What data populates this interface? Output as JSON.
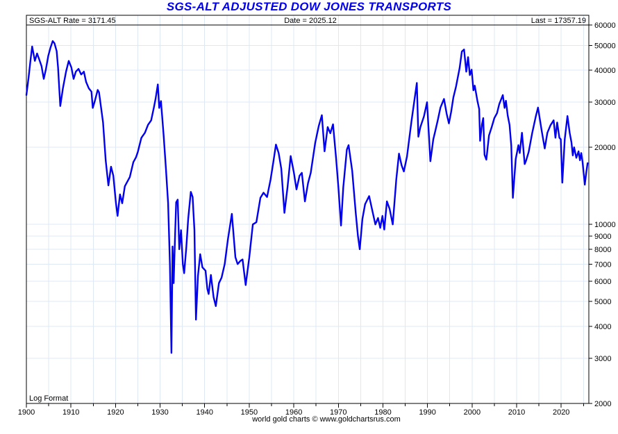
{
  "chart_data": {
    "type": "line",
    "title": "SGS-ALT ADJUSTED DOW JONES TRANSPORTS",
    "header": {
      "left": "SGS-ALT Rate = 3171.45",
      "center": "Date = 2025.12",
      "right": "Last = 17357.19"
    },
    "log_format_label": "Log Format",
    "footer": "world gold charts © www.goldchartsrus.com",
    "grid": true,
    "legend": "none",
    "colors": {
      "line": "#0000EE",
      "grid": "#dde8f4",
      "frame": "#000000",
      "title": "#0000EE",
      "text": "#000000"
    },
    "x_axis": {
      "range": [
        1900,
        2026.2
      ],
      "label_years": [
        1900,
        1910,
        1920,
        1930,
        1940,
        1950,
        1960,
        1970,
        1980,
        1990,
        2000,
        2010,
        2020
      ],
      "minor_tick_step": 5,
      "gridline_step": 5
    },
    "y_axis": {
      "scale": "log",
      "range": [
        2000,
        65560
      ],
      "ticks": [
        2000,
        3000,
        4000,
        5000,
        6000,
        7000,
        8000,
        9000,
        10000,
        20000,
        30000,
        40000,
        50000,
        60000
      ],
      "side": "right"
    },
    "series": [
      {
        "name": "SGS-ALT Adjusted Dow Jones Transports",
        "points": [
          [
            1900.0,
            32000
          ],
          [
            1900.5,
            37500
          ],
          [
            1900.9,
            43500
          ],
          [
            1901.3,
            49500
          ],
          [
            1901.9,
            43500
          ],
          [
            1902.4,
            46500
          ],
          [
            1902.9,
            44000
          ],
          [
            1903.4,
            41500
          ],
          [
            1903.9,
            37000
          ],
          [
            1904.4,
            40500
          ],
          [
            1904.9,
            45500
          ],
          [
            1905.4,
            49000
          ],
          [
            1905.9,
            52000
          ],
          [
            1906.3,
            51000
          ],
          [
            1906.8,
            47500
          ],
          [
            1907.1,
            41000
          ],
          [
            1907.6,
            29000
          ],
          [
            1908.2,
            34000
          ],
          [
            1908.9,
            39500
          ],
          [
            1909.5,
            43500
          ],
          [
            1910.1,
            41000
          ],
          [
            1910.6,
            37000
          ],
          [
            1911.1,
            39500
          ],
          [
            1911.7,
            40500
          ],
          [
            1912.3,
            38500
          ],
          [
            1912.9,
            39500
          ],
          [
            1913.4,
            36000
          ],
          [
            1914.0,
            34000
          ],
          [
            1914.6,
            33000
          ],
          [
            1914.9,
            28500
          ],
          [
            1915.4,
            30500
          ],
          [
            1916.0,
            33500
          ],
          [
            1916.3,
            32800
          ],
          [
            1917.2,
            25000
          ],
          [
            1917.8,
            17800
          ],
          [
            1918.0,
            16500
          ],
          [
            1918.4,
            14200
          ],
          [
            1919.0,
            16800
          ],
          [
            1919.5,
            15500
          ],
          [
            1920.1,
            12100
          ],
          [
            1920.45,
            10800
          ],
          [
            1921.0,
            13100
          ],
          [
            1921.5,
            12100
          ],
          [
            1922.1,
            14100
          ],
          [
            1923.2,
            15300
          ],
          [
            1924.0,
            17500
          ],
          [
            1924.6,
            18300
          ],
          [
            1925.0,
            19200
          ],
          [
            1925.8,
            21800
          ],
          [
            1926.6,
            22800
          ],
          [
            1927.3,
            24500
          ],
          [
            1928.0,
            25500
          ],
          [
            1928.6,
            28600
          ],
          [
            1929.0,
            31000
          ],
          [
            1929.5,
            35200
          ],
          [
            1929.8,
            28500
          ],
          [
            1930.2,
            30300
          ],
          [
            1930.8,
            22200
          ],
          [
            1931.3,
            16600
          ],
          [
            1931.8,
            12100
          ],
          [
            1932.2,
            7000
          ],
          [
            1932.55,
            3150
          ],
          [
            1932.8,
            8200
          ],
          [
            1933.05,
            5900
          ],
          [
            1933.35,
            9000
          ],
          [
            1933.6,
            12200
          ],
          [
            1933.95,
            12500
          ],
          [
            1934.3,
            8000
          ],
          [
            1934.7,
            9500
          ],
          [
            1935.1,
            7000
          ],
          [
            1935.4,
            6450
          ],
          [
            1935.9,
            8200
          ],
          [
            1936.3,
            10500
          ],
          [
            1936.9,
            13400
          ],
          [
            1937.3,
            12800
          ],
          [
            1937.7,
            9500
          ],
          [
            1938.05,
            4250
          ],
          [
            1938.5,
            6300
          ],
          [
            1939.0,
            7650
          ],
          [
            1939.5,
            6800
          ],
          [
            1940.2,
            6600
          ],
          [
            1940.6,
            5600
          ],
          [
            1940.9,
            5350
          ],
          [
            1941.4,
            6350
          ],
          [
            1942.0,
            5200
          ],
          [
            1942.5,
            4800
          ],
          [
            1943.2,
            5900
          ],
          [
            1943.8,
            6200
          ],
          [
            1944.5,
            7000
          ],
          [
            1945.2,
            8700
          ],
          [
            1946.1,
            11000
          ],
          [
            1946.9,
            7450
          ],
          [
            1947.4,
            7000
          ],
          [
            1948.0,
            7200
          ],
          [
            1948.5,
            7300
          ],
          [
            1949.2,
            5800
          ],
          [
            1950.0,
            7400
          ],
          [
            1950.8,
            10000
          ],
          [
            1951.6,
            10200
          ],
          [
            1952.5,
            12700
          ],
          [
            1953.2,
            13300
          ],
          [
            1954.0,
            12800
          ],
          [
            1954.8,
            15000
          ],
          [
            1955.4,
            17500
          ],
          [
            1956.0,
            20500
          ],
          [
            1956.6,
            19000
          ],
          [
            1957.2,
            16500
          ],
          [
            1957.9,
            11100
          ],
          [
            1958.6,
            14000
          ],
          [
            1959.3,
            18500
          ],
          [
            1960.0,
            16000
          ],
          [
            1960.6,
            13700
          ],
          [
            1961.3,
            15500
          ],
          [
            1961.8,
            15900
          ],
          [
            1962.5,
            12300
          ],
          [
            1963.2,
            14500
          ],
          [
            1963.8,
            15900
          ],
          [
            1964.8,
            20800
          ],
          [
            1965.6,
            24200
          ],
          [
            1966.3,
            26700
          ],
          [
            1966.9,
            19300
          ],
          [
            1967.6,
            24000
          ],
          [
            1968.2,
            22700
          ],
          [
            1968.8,
            24600
          ],
          [
            1969.5,
            18000
          ],
          [
            1970.0,
            14000
          ],
          [
            1970.6,
            9900
          ],
          [
            1971.1,
            13900
          ],
          [
            1971.9,
            19600
          ],
          [
            1972.3,
            20400
          ],
          [
            1973.1,
            16200
          ],
          [
            1973.9,
            11100
          ],
          [
            1974.4,
            9000
          ],
          [
            1974.8,
            8000
          ],
          [
            1975.4,
            10500
          ],
          [
            1976.0,
            12000
          ],
          [
            1976.9,
            12900
          ],
          [
            1977.6,
            11350
          ],
          [
            1978.3,
            10000
          ],
          [
            1978.9,
            10600
          ],
          [
            1979.4,
            9700
          ],
          [
            1979.9,
            10800
          ],
          [
            1980.3,
            9550
          ],
          [
            1980.9,
            12300
          ],
          [
            1981.5,
            11500
          ],
          [
            1982.2,
            10000
          ],
          [
            1983.0,
            15000
          ],
          [
            1983.6,
            18900
          ],
          [
            1984.2,
            17000
          ],
          [
            1984.7,
            16100
          ],
          [
            1985.4,
            18400
          ],
          [
            1986.4,
            25200
          ],
          [
            1987.0,
            30000
          ],
          [
            1987.6,
            35700
          ],
          [
            1987.95,
            22000
          ],
          [
            1988.4,
            24000
          ],
          [
            1989.2,
            26400
          ],
          [
            1989.9,
            30000
          ],
          [
            1990.65,
            17650
          ],
          [
            1991.3,
            21500
          ],
          [
            1991.7,
            23000
          ],
          [
            1992.3,
            25500
          ],
          [
            1992.9,
            28600
          ],
          [
            1993.7,
            30900
          ],
          [
            1994.3,
            27000
          ],
          [
            1994.8,
            24800
          ],
          [
            1995.3,
            27500
          ],
          [
            1995.8,
            31300
          ],
          [
            1996.4,
            34500
          ],
          [
            1997.2,
            40800
          ],
          [
            1997.7,
            47300
          ],
          [
            1998.2,
            48200
          ],
          [
            1998.7,
            39500
          ],
          [
            1999.1,
            45000
          ],
          [
            1999.5,
            38300
          ],
          [
            1999.9,
            40200
          ],
          [
            2000.3,
            33400
          ],
          [
            2000.6,
            34800
          ],
          [
            2001.2,
            30400
          ],
          [
            2001.6,
            28200
          ],
          [
            2001.8,
            21200
          ],
          [
            2002.2,
            24500
          ],
          [
            2002.5,
            26000
          ],
          [
            2002.8,
            18700
          ],
          [
            2003.2,
            17900
          ],
          [
            2003.8,
            22250
          ],
          [
            2004.4,
            24000
          ],
          [
            2005.0,
            26000
          ],
          [
            2005.6,
            27200
          ],
          [
            2006.1,
            29500
          ],
          [
            2006.9,
            32000
          ],
          [
            2007.3,
            28500
          ],
          [
            2007.6,
            30400
          ],
          [
            2008.0,
            26600
          ],
          [
            2008.4,
            24500
          ],
          [
            2008.8,
            20300
          ],
          [
            2009.15,
            12700
          ],
          [
            2009.8,
            18000
          ],
          [
            2010.4,
            20400
          ],
          [
            2010.7,
            19000
          ],
          [
            2011.2,
            22800
          ],
          [
            2011.8,
            17200
          ],
          [
            2012.1,
            17700
          ],
          [
            2012.7,
            19200
          ],
          [
            2013.5,
            22800
          ],
          [
            2014.3,
            26400
          ],
          [
            2014.8,
            28600
          ],
          [
            2015.6,
            23300
          ],
          [
            2016.3,
            19800
          ],
          [
            2016.9,
            22800
          ],
          [
            2017.6,
            24400
          ],
          [
            2018.3,
            25500
          ],
          [
            2018.7,
            21800
          ],
          [
            2019.1,
            25000
          ],
          [
            2019.6,
            21800
          ],
          [
            2019.9,
            21500
          ],
          [
            2020.25,
            14550
          ],
          [
            2020.8,
            21500
          ],
          [
            2021.4,
            26500
          ],
          [
            2021.9,
            22800
          ],
          [
            2022.3,
            20900
          ],
          [
            2022.6,
            18600
          ],
          [
            2022.9,
            20000
          ],
          [
            2023.4,
            18200
          ],
          [
            2023.9,
            19300
          ],
          [
            2024.2,
            17800
          ],
          [
            2024.5,
            19000
          ],
          [
            2024.8,
            17500
          ],
          [
            2025.0,
            16100
          ],
          [
            2025.3,
            14300
          ],
          [
            2025.6,
            15800
          ],
          [
            2025.92,
            17357.19
          ]
        ]
      }
    ]
  }
}
